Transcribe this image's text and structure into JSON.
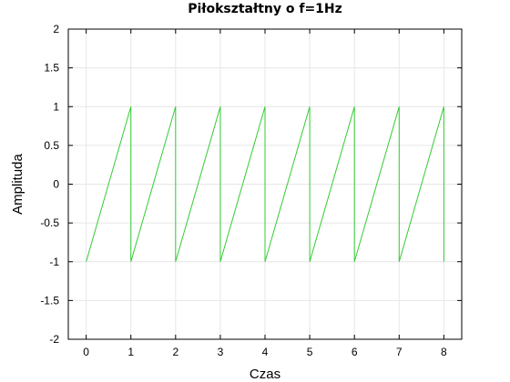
{
  "chart_data": {
    "type": "line",
    "title": "Piłokształtny o f=1Hz",
    "xlabel": "Czas",
    "ylabel": "Amplituda",
    "xlim": [
      -0.4,
      8.4
    ],
    "ylim": [
      -2,
      2
    ],
    "xticks": [
      0,
      1,
      2,
      3,
      4,
      5,
      6,
      7,
      8
    ],
    "yticks": [
      -2,
      -1.5,
      -1,
      -0.5,
      0,
      0.5,
      1,
      1.5,
      2
    ],
    "grid": true,
    "legend": "none",
    "series": [
      {
        "color": "#33cc33",
        "x": [
          0,
          1,
          1,
          2,
          2,
          3,
          3,
          4,
          4,
          5,
          5,
          6,
          6,
          7,
          7,
          8,
          8
        ],
        "y": [
          -1,
          1,
          -1,
          1,
          -1,
          1,
          -1,
          1,
          -1,
          1,
          -1,
          1,
          -1,
          1,
          -1,
          1,
          -1
        ]
      }
    ]
  }
}
